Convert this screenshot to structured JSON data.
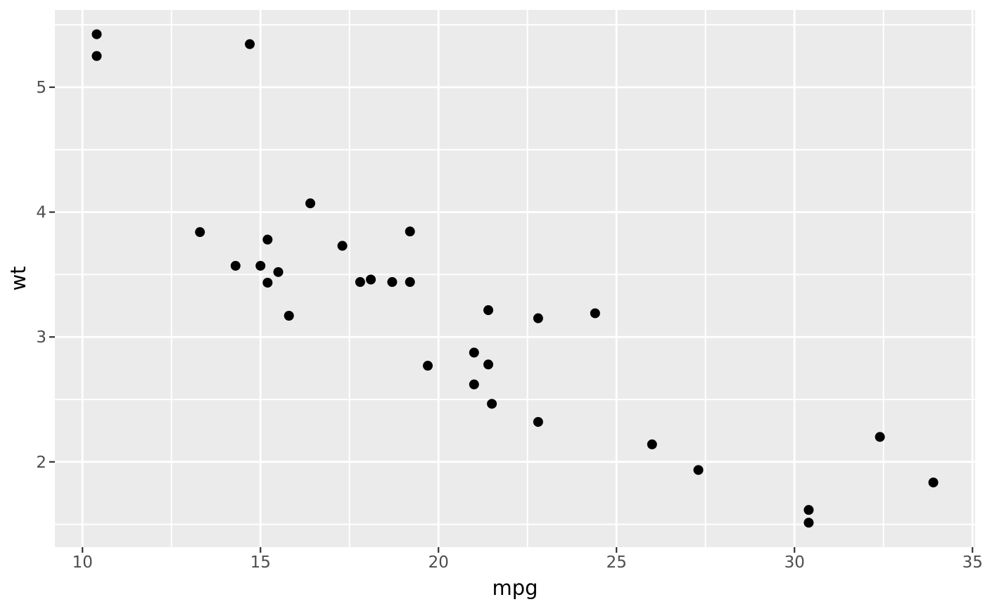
{
  "chart_data": {
    "type": "scatter",
    "title": "",
    "xlabel": "mpg",
    "ylabel": "wt",
    "xlim": [
      9.225,
      35.075
    ],
    "ylim": [
      1.3174,
      5.6196
    ],
    "x_ticks": [
      10,
      15,
      20,
      25,
      30,
      35
    ],
    "y_ticks": [
      2,
      3,
      4,
      5
    ],
    "x_minor_gridlines": [
      12.5,
      17.5,
      22.5,
      27.5,
      32.5
    ],
    "y_minor_gridlines": [
      1.5,
      2.5,
      3.5,
      4.5,
      5.5
    ],
    "grid": true,
    "legend": "none",
    "theme": {
      "panel_background": "#EBEBEB",
      "gridline_color": "#FFFFFF",
      "point_color": "#000000",
      "tick_mark_color": "#333333",
      "tick_label_color": "#4D4D4D",
      "axis_title_color": "#000000",
      "figure_background": "#FFFFFF"
    },
    "points": [
      {
        "mpg": 21.0,
        "wt": 2.62
      },
      {
        "mpg": 21.0,
        "wt": 2.875
      },
      {
        "mpg": 22.8,
        "wt": 2.32
      },
      {
        "mpg": 21.4,
        "wt": 3.215
      },
      {
        "mpg": 18.7,
        "wt": 3.44
      },
      {
        "mpg": 18.1,
        "wt": 3.46
      },
      {
        "mpg": 14.3,
        "wt": 3.57
      },
      {
        "mpg": 24.4,
        "wt": 3.19
      },
      {
        "mpg": 22.8,
        "wt": 3.15
      },
      {
        "mpg": 19.2,
        "wt": 3.44
      },
      {
        "mpg": 17.8,
        "wt": 3.44
      },
      {
        "mpg": 16.4,
        "wt": 4.07
      },
      {
        "mpg": 17.3,
        "wt": 3.73
      },
      {
        "mpg": 15.2,
        "wt": 3.78
      },
      {
        "mpg": 10.4,
        "wt": 5.25
      },
      {
        "mpg": 10.4,
        "wt": 5.424
      },
      {
        "mpg": 14.7,
        "wt": 5.345
      },
      {
        "mpg": 32.4,
        "wt": 2.2
      },
      {
        "mpg": 30.4,
        "wt": 1.615
      },
      {
        "mpg": 33.9,
        "wt": 1.835
      },
      {
        "mpg": 21.5,
        "wt": 2.465
      },
      {
        "mpg": 15.5,
        "wt": 3.52
      },
      {
        "mpg": 15.2,
        "wt": 3.435
      },
      {
        "mpg": 13.3,
        "wt": 3.84
      },
      {
        "mpg": 19.2,
        "wt": 3.845
      },
      {
        "mpg": 27.3,
        "wt": 1.935
      },
      {
        "mpg": 26.0,
        "wt": 2.14
      },
      {
        "mpg": 30.4,
        "wt": 1.513
      },
      {
        "mpg": 15.8,
        "wt": 3.17
      },
      {
        "mpg": 19.7,
        "wt": 2.77
      },
      {
        "mpg": 15.0,
        "wt": 3.57
      },
      {
        "mpg": 21.4,
        "wt": 2.78
      }
    ]
  }
}
